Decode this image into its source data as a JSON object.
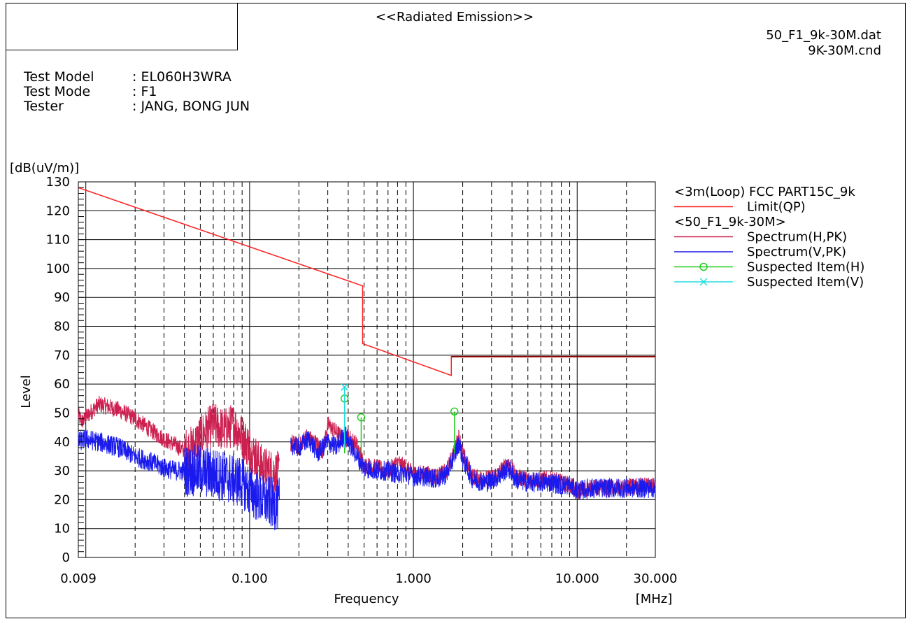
{
  "header": {
    "title": "<<Radiated Emission>>",
    "data_file": "50_F1_9k-30M.dat",
    "cond_file": "9K-30M.cnd"
  },
  "info": [
    {
      "key": "Test Model",
      "value": ": EL060H3WRA"
    },
    {
      "key": "Test Mode",
      "value": ": F1"
    },
    {
      "key": "Tester",
      "value": ": JANG, BONG JUN"
    }
  ],
  "legend": {
    "group1": "<3m(Loop) FCC PART15C_9k",
    "limit": "Limit(QP)",
    "group2": "<50_F1_9k-30M>",
    "spec_h": "Spectrum(H,PK)",
    "spec_v": "Spectrum(V,PK)",
    "susp_h": "Suspected Item(H)",
    "susp_v": "Suspected Item(V)"
  },
  "colors": {
    "limit": "#ff2020",
    "spectrum_h": "#cc2050",
    "spectrum_v": "#1a1aee",
    "suspected_h": "#22cc22",
    "suspected_v": "#22dddd",
    "limit_high": "#8b0000"
  },
  "chart_data": {
    "type": "line",
    "xscale": "log",
    "xlim": [
      0.009,
      30
    ],
    "ylim": [
      0,
      130
    ],
    "yunit": "[dB(uV/m)]",
    "ylabel": "Level",
    "xlabel": "Frequency",
    "xunit": "[MHz]",
    "yticks": [
      0,
      10,
      20,
      30,
      40,
      50,
      60,
      70,
      80,
      90,
      100,
      110,
      120,
      130
    ],
    "xtick_labels": [
      {
        "v": 0.009,
        "label": "0.009"
      },
      {
        "v": 0.1,
        "label": "0.100"
      },
      {
        "v": 1,
        "label": "1.000"
      },
      {
        "v": 10,
        "label": "10.000"
      },
      {
        "v": 30,
        "label": "30.000"
      }
    ],
    "limit_qp": [
      [
        0.009,
        128
      ],
      [
        0.49,
        94
      ],
      [
        0.49,
        74
      ],
      [
        1.705,
        63
      ],
      [
        1.705,
        69.5
      ],
      [
        30,
        69.5
      ]
    ],
    "spectrum_h_envelope": [
      [
        0.009,
        49
      ],
      [
        0.0095,
        47
      ],
      [
        0.011,
        51
      ],
      [
        0.012,
        53
      ],
      [
        0.014,
        52
      ],
      [
        0.016,
        51
      ],
      [
        0.02,
        48
      ],
      [
        0.025,
        44
      ],
      [
        0.03,
        41
      ],
      [
        0.035,
        39
      ],
      [
        0.04,
        37
      ],
      [
        0.045,
        38
      ],
      [
        0.05,
        42
      ],
      [
        0.06,
        46
      ],
      [
        0.07,
        44
      ],
      [
        0.08,
        46
      ],
      [
        0.09,
        42
      ],
      [
        0.1,
        38
      ],
      [
        0.12,
        31
      ],
      [
        0.15,
        29
      ],
      [
        0.18,
        40
      ],
      [
        0.2,
        38
      ],
      [
        0.22,
        42
      ],
      [
        0.25,
        40
      ],
      [
        0.28,
        37
      ],
      [
        0.3,
        46
      ],
      [
        0.33,
        44
      ],
      [
        0.36,
        42
      ],
      [
        0.38,
        40
      ],
      [
        0.4,
        42
      ],
      [
        0.45,
        39
      ],
      [
        0.5,
        32
      ],
      [
        0.6,
        31
      ],
      [
        0.7,
        30
      ],
      [
        0.8,
        33
      ],
      [
        0.9,
        31
      ],
      [
        1,
        29
      ],
      [
        1.2,
        29
      ],
      [
        1.4,
        28
      ],
      [
        1.6,
        30
      ],
      [
        1.8,
        38
      ],
      [
        1.9,
        42
      ],
      [
        2.0,
        36
      ],
      [
        2.3,
        28
      ],
      [
        2.8,
        27
      ],
      [
        3.3,
        29
      ],
      [
        3.8,
        33
      ],
      [
        4.2,
        28
      ],
      [
        5,
        27
      ],
      [
        6,
        27
      ],
      [
        7,
        27
      ],
      [
        8,
        26
      ],
      [
        9,
        25
      ],
      [
        10,
        23
      ],
      [
        12,
        24
      ],
      [
        15,
        24
      ],
      [
        20,
        24
      ],
      [
        25,
        25
      ],
      [
        30,
        25
      ]
    ],
    "spectrum_v_envelope": [
      [
        0.009,
        40
      ],
      [
        0.01,
        41
      ],
      [
        0.012,
        40
      ],
      [
        0.014,
        39
      ],
      [
        0.016,
        38
      ],
      [
        0.02,
        35
      ],
      [
        0.025,
        33
      ],
      [
        0.03,
        31
      ],
      [
        0.035,
        30
      ],
      [
        0.04,
        30
      ],
      [
        0.05,
        30
      ],
      [
        0.06,
        29
      ],
      [
        0.07,
        28
      ],
      [
        0.08,
        27
      ],
      [
        0.09,
        26
      ],
      [
        0.1,
        23
      ],
      [
        0.12,
        20
      ],
      [
        0.15,
        18
      ],
      [
        0.18,
        39
      ],
      [
        0.2,
        38
      ],
      [
        0.23,
        41
      ],
      [
        0.26,
        36
      ],
      [
        0.3,
        40
      ],
      [
        0.34,
        38
      ],
      [
        0.38,
        43
      ],
      [
        0.42,
        38
      ],
      [
        0.5,
        31
      ],
      [
        0.6,
        30
      ],
      [
        0.7,
        30
      ],
      [
        0.8,
        29
      ],
      [
        0.9,
        29
      ],
      [
        1,
        28
      ],
      [
        1.2,
        28
      ],
      [
        1.4,
        27
      ],
      [
        1.6,
        29
      ],
      [
        1.8,
        36
      ],
      [
        1.9,
        40
      ],
      [
        2.0,
        34
      ],
      [
        2.3,
        27
      ],
      [
        2.8,
        26
      ],
      [
        3.3,
        28
      ],
      [
        3.8,
        31
      ],
      [
        4.2,
        27
      ],
      [
        5,
        26
      ],
      [
        6,
        26
      ],
      [
        7,
        26
      ],
      [
        8,
        25
      ],
      [
        9,
        25
      ],
      [
        10,
        23
      ],
      [
        12,
        24
      ],
      [
        15,
        24
      ],
      [
        20,
        24
      ],
      [
        25,
        24
      ],
      [
        30,
        24
      ]
    ],
    "suspected_h": [
      [
        0.38,
        55
      ],
      [
        0.48,
        48.5
      ],
      [
        1.78,
        50.5
      ]
    ],
    "suspected_v": [
      [
        0.38,
        59
      ]
    ]
  }
}
